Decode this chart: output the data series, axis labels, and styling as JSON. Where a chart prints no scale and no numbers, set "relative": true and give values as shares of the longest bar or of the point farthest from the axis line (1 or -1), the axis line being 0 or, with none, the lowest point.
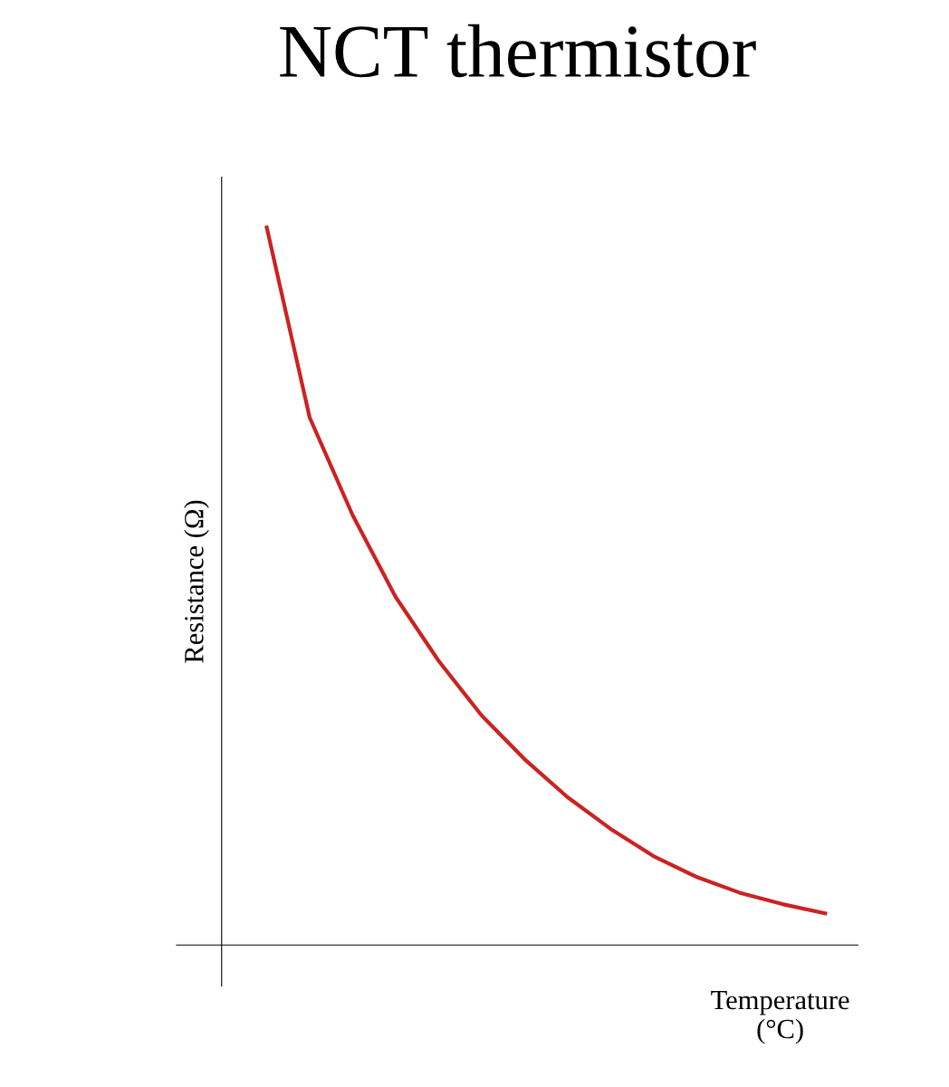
{
  "chart_data": {
    "type": "line",
    "title": "NCT thermistor",
    "xlabel": "Temperature\n(°C)",
    "ylabel": "Resistance (Ω)",
    "relative": true,
    "categories": [
      null,
      null,
      null,
      null,
      null,
      null,
      null,
      null,
      null,
      null,
      null,
      null,
      null,
      null
    ],
    "series": [
      {
        "color": "#cc2222",
        "values": [
          1.0,
          0.735,
          0.599,
          0.485,
          0.396,
          0.32,
          0.259,
          0.206,
          0.162,
          0.124,
          0.095,
          0.073,
          0.057,
          0.044
        ]
      }
    ],
    "legend": false,
    "tick_labels": false,
    "marker": "none",
    "line_style": "solid"
  }
}
